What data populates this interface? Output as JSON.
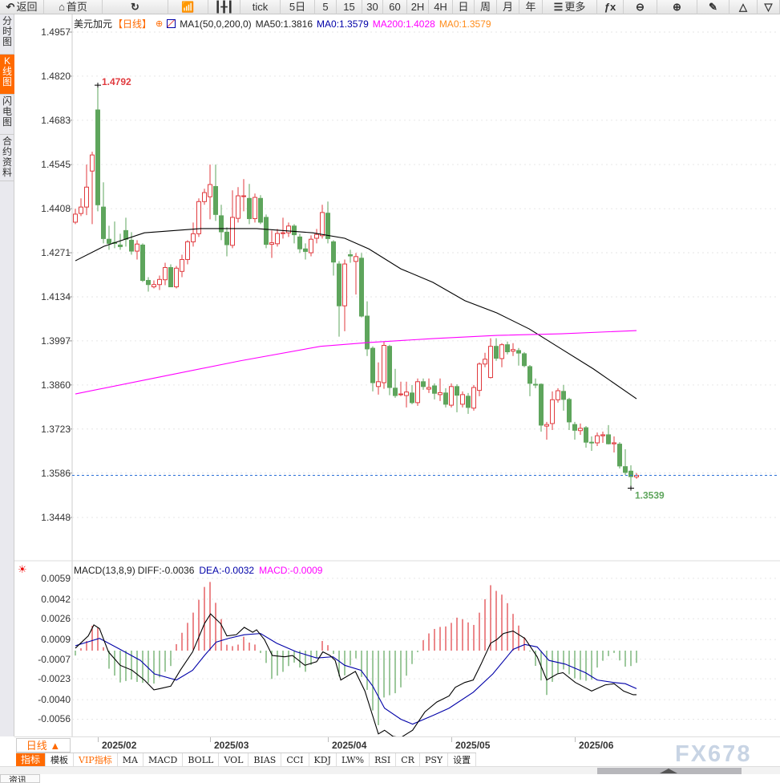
{
  "toolbar": {
    "items": [
      {
        "label": "返回",
        "icon": "back-arrow-icon",
        "w": 55
      },
      {
        "label": "首页",
        "icon": "home-icon",
        "w": 73
      },
      {
        "label": "",
        "icon": "refresh-icon",
        "w": 82
      },
      {
        "label": "",
        "icon": "indicator-chart-icon",
        "w": 50
      },
      {
        "label": "",
        "icon": "candlestick-icon",
        "w": 40
      },
      {
        "label": "tick",
        "icon": "",
        "w": 50
      },
      {
        "label": "5日",
        "icon": "",
        "w": 43
      },
      {
        "label": "5",
        "icon": "",
        "w": 27
      },
      {
        "label": "15",
        "icon": "",
        "w": 32
      },
      {
        "label": "30",
        "icon": "",
        "w": 26
      },
      {
        "label": "60",
        "icon": "",
        "w": 30
      },
      {
        "label": "2H",
        "icon": "",
        "w": 27
      },
      {
        "label": "4H",
        "icon": "",
        "w": 30
      },
      {
        "label": "日",
        "icon": "",
        "w": 27
      },
      {
        "label": "周",
        "icon": "",
        "w": 28
      },
      {
        "label": "月",
        "icon": "",
        "w": 28
      },
      {
        "label": "年",
        "icon": "",
        "w": 29
      },
      {
        "label": "更多",
        "icon": "menu-icon",
        "w": 68
      },
      {
        "label": "",
        "icon": "fx-icon",
        "w": 33
      },
      {
        "label": "",
        "icon": "zoom-out-icon",
        "w": 42
      },
      {
        "label": "",
        "icon": "zoom-in-icon",
        "w": 50
      },
      {
        "label": "",
        "icon": "pen-icon",
        "w": 40
      },
      {
        "label": "",
        "icon": "triangle-up-icon",
        "w": 35
      },
      {
        "label": "",
        "icon": "triangle-down-icon",
        "w": 28
      }
    ]
  },
  "sidebar": {
    "tabs": [
      {
        "label": "分时图",
        "active": false
      },
      {
        "label": "K线图",
        "active": true
      },
      {
        "label": "闪电图",
        "active": false
      },
      {
        "label": "合约资料",
        "active": false
      }
    ]
  },
  "header": {
    "symbol": "美元加元",
    "period": "【日线】",
    "ma_params": "MA1(50,0,200,0)",
    "ma50": "MA50:1.3816",
    "ma0": "MA0:1.3579",
    "ma200": "MA200:1.4028",
    "ma0b": "MA0:1.3579"
  },
  "macd_header": {
    "name": "MACD(13,8,9)",
    "diff": "DIFF:-0.0036",
    "dea": "DEA:-0.0032",
    "macd": "MACD:-0.0009"
  },
  "colors": {
    "up": "#e03a3e",
    "down": "#5ea55c",
    "ma50": "#000000",
    "ma200": "#ff00ff",
    "diff": "#000000",
    "dea": "#0000a8",
    "accent": "#ff6a00",
    "last_price_line": "#2a6fd6"
  },
  "x_axis": {
    "period_button": "日线 ▲",
    "ticks": [
      {
        "label": "2025/02",
        "candle_index": 4
      },
      {
        "label": "2025/03",
        "candle_index": 24
      },
      {
        "label": "2025/04",
        "candle_index": 45
      },
      {
        "label": "2025/05",
        "candle_index": 67
      },
      {
        "label": "2025/06",
        "candle_index": 89
      }
    ]
  },
  "indicator_tabs": [
    {
      "label": "指标",
      "style": "active"
    },
    {
      "label": "模板",
      "style": ""
    },
    {
      "label": "VIP指标",
      "style": "vip"
    },
    {
      "label": "MA",
      "style": ""
    },
    {
      "label": "MACD",
      "style": ""
    },
    {
      "label": "BOLL",
      "style": ""
    },
    {
      "label": "VOL",
      "style": ""
    },
    {
      "label": "BIAS",
      "style": ""
    },
    {
      "label": "CCI",
      "style": ""
    },
    {
      "label": "KDJ",
      "style": ""
    },
    {
      "label": "LW%",
      "style": ""
    },
    {
      "label": "RSI",
      "style": ""
    },
    {
      "label": "CR",
      "style": ""
    },
    {
      "label": "PSY",
      "style": ""
    },
    {
      "label": "设置",
      "style": ""
    }
  ],
  "watermark": "FX678",
  "bottom_tab": "资讯",
  "chart_data": {
    "type": "candlestick",
    "price_ticks": [
      "1.4957",
      "1.4820",
      "1.4683",
      "1.4545",
      "1.4408",
      "1.4271",
      "1.4134",
      "1.3997",
      "1.3860",
      "1.3723",
      "1.3586",
      "1.3448"
    ],
    "ylim": [
      1.3448,
      1.4957
    ],
    "high_label": "1.4792",
    "low_label": "1.3539",
    "last_price": 1.3579,
    "high_index": 4,
    "low_index": 99,
    "ohlc": [
      [
        1.4366,
        1.4408,
        1.436,
        1.4391
      ],
      [
        1.4393,
        1.444,
        1.4385,
        1.4413
      ],
      [
        1.4413,
        1.4545,
        1.4388,
        1.4475
      ],
      [
        1.4525,
        1.4585,
        1.436,
        1.4575
      ],
      [
        1.4715,
        1.4792,
        1.44,
        1.442
      ],
      [
        1.4413,
        1.449,
        1.43,
        1.4315
      ],
      [
        1.4313,
        1.4355,
        1.428,
        1.43
      ],
      [
        1.4303,
        1.4368,
        1.4285,
        1.43
      ],
      [
        1.4295,
        1.433,
        1.428,
        1.429
      ],
      [
        1.434,
        1.438,
        1.429,
        1.4313
      ],
      [
        1.431,
        1.4335,
        1.4265,
        1.4276
      ],
      [
        1.4276,
        1.431,
        1.425,
        1.4298
      ],
      [
        1.4295,
        1.43,
        1.418,
        1.4185
      ],
      [
        1.4185,
        1.4195,
        1.415,
        1.4172
      ],
      [
        1.4165,
        1.4185,
        1.416,
        1.4172
      ],
      [
        1.4172,
        1.42,
        1.4155,
        1.4188
      ],
      [
        1.4187,
        1.424,
        1.417,
        1.4225
      ],
      [
        1.4225,
        1.4235,
        1.4165,
        1.4165
      ],
      [
        1.4165,
        1.423,
        1.416,
        1.4223
      ],
      [
        1.4213,
        1.4265,
        1.4195,
        1.425
      ],
      [
        1.425,
        1.431,
        1.4235,
        1.4305
      ],
      [
        1.4305,
        1.4365,
        1.429,
        1.433
      ],
      [
        1.433,
        1.444,
        1.432,
        1.443
      ],
      [
        1.443,
        1.447,
        1.442,
        1.4458
      ],
      [
        1.4445,
        1.4545,
        1.4375,
        1.4483
      ],
      [
        1.4477,
        1.4545,
        1.437,
        1.439
      ],
      [
        1.4386,
        1.442,
        1.431,
        1.4336
      ],
      [
        1.4335,
        1.435,
        1.426,
        1.4296
      ],
      [
        1.4294,
        1.4465,
        1.4285,
        1.4381
      ],
      [
        1.4378,
        1.4475,
        1.4365,
        1.4448
      ],
      [
        1.4448,
        1.45,
        1.44,
        1.4448
      ],
      [
        1.444,
        1.4485,
        1.436,
        1.4377
      ],
      [
        1.4377,
        1.4455,
        1.4365,
        1.4443
      ],
      [
        1.444,
        1.445,
        1.436,
        1.4366
      ],
      [
        1.4381,
        1.439,
        1.4285,
        1.4297
      ],
      [
        1.4297,
        1.434,
        1.4255,
        1.4302
      ],
      [
        1.4299,
        1.4345,
        1.429,
        1.4331
      ],
      [
        1.4331,
        1.438,
        1.4315,
        1.4333
      ],
      [
        1.4333,
        1.4365,
        1.432,
        1.4354
      ],
      [
        1.4354,
        1.436,
        1.43,
        1.4327
      ],
      [
        1.432,
        1.433,
        1.427,
        1.4283
      ],
      [
        1.4283,
        1.43,
        1.425,
        1.4275
      ],
      [
        1.4271,
        1.4325,
        1.426,
        1.4313
      ],
      [
        1.4316,
        1.4345,
        1.43,
        1.4328
      ],
      [
        1.4324,
        1.442,
        1.4315,
        1.4396
      ],
      [
        1.4394,
        1.443,
        1.43,
        1.4315
      ],
      [
        1.4305,
        1.431,
        1.42,
        1.4242
      ],
      [
        1.4236,
        1.4245,
        1.401,
        1.4106
      ],
      [
        1.4106,
        1.425,
        1.4027,
        1.4236
      ],
      [
        1.4265,
        1.428,
        1.424,
        1.4261
      ],
      [
        1.4244,
        1.427,
        1.4141,
        1.4259
      ],
      [
        1.4254,
        1.427,
        1.407,
        1.4074
      ],
      [
        1.4074,
        1.412,
        1.395,
        1.3972
      ],
      [
        1.3974,
        1.398,
        1.384,
        1.3867
      ],
      [
        1.3855,
        1.393,
        1.383,
        1.387
      ],
      [
        1.3867,
        1.3995,
        1.3848,
        1.3983
      ],
      [
        1.398,
        1.3985,
        1.3828,
        1.3852
      ],
      [
        1.385,
        1.391,
        1.382,
        1.3827
      ],
      [
        1.383,
        1.387,
        1.3825,
        1.3832
      ],
      [
        1.3827,
        1.387,
        1.379,
        1.3838
      ],
      [
        1.3835,
        1.386,
        1.38,
        1.3805
      ],
      [
        1.3805,
        1.388,
        1.3795,
        1.387
      ],
      [
        1.387,
        1.388,
        1.3845,
        1.3855
      ],
      [
        1.3847,
        1.388,
        1.3835,
        1.3852
      ],
      [
        1.3857,
        1.3865,
        1.3815,
        1.3834
      ],
      [
        1.383,
        1.388,
        1.381,
        1.3836
      ],
      [
        1.3835,
        1.385,
        1.379,
        1.38
      ],
      [
        1.3797,
        1.3865,
        1.379,
        1.3855
      ],
      [
        1.3855,
        1.3862,
        1.3775,
        1.3828
      ],
      [
        1.38,
        1.384,
        1.379,
        1.383
      ],
      [
        1.3825,
        1.3835,
        1.377,
        1.379
      ],
      [
        1.3788,
        1.386,
        1.378,
        1.3852
      ],
      [
        1.3843,
        1.393,
        1.3825,
        1.3925
      ],
      [
        1.3925,
        1.396,
        1.3915,
        1.394
      ],
      [
        1.3883,
        1.4005,
        1.388,
        1.398
      ],
      [
        1.398,
        1.4005,
        1.3935,
        1.3943
      ],
      [
        1.3942,
        1.399,
        1.3915,
        1.3985
      ],
      [
        1.3985,
        1.3995,
        1.3955,
        1.3963
      ],
      [
        1.3965,
        1.399,
        1.395,
        1.397
      ],
      [
        1.3967,
        1.3975,
        1.392,
        1.3959
      ],
      [
        1.3957,
        1.3962,
        1.3915,
        1.392
      ],
      [
        1.3917,
        1.3922,
        1.3825,
        1.3865
      ],
      [
        1.3862,
        1.388,
        1.385,
        1.386
      ],
      [
        1.3862,
        1.3865,
        1.3715,
        1.3735
      ],
      [
        1.3732,
        1.3745,
        1.369,
        1.3737
      ],
      [
        1.374,
        1.384,
        1.372,
        1.3814
      ],
      [
        1.3814,
        1.385,
        1.3805,
        1.3842
      ],
      [
        1.384,
        1.386,
        1.378,
        1.3815
      ],
      [
        1.3815,
        1.382,
        1.372,
        1.3745
      ],
      [
        1.3737,
        1.3745,
        1.369,
        1.3719
      ],
      [
        1.3718,
        1.374,
        1.3705,
        1.3725
      ],
      [
        1.3727,
        1.3732,
        1.3665,
        1.3682
      ],
      [
        1.3682,
        1.37,
        1.3655,
        1.368
      ],
      [
        1.368,
        1.3712,
        1.367,
        1.3702
      ],
      [
        1.3702,
        1.3715,
        1.368,
        1.3705
      ],
      [
        1.3705,
        1.3735,
        1.3675,
        1.3677
      ],
      [
        1.3677,
        1.37,
        1.365,
        1.368
      ],
      [
        1.3676,
        1.3682,
        1.36,
        1.3608
      ],
      [
        1.3606,
        1.366,
        1.358,
        1.3588
      ],
      [
        1.3592,
        1.361,
        1.3539,
        1.3575
      ],
      [
        1.3574,
        1.3586,
        1.3568,
        1.3579
      ]
    ],
    "ma50": [
      [
        0,
        1.4246
      ],
      [
        5.1,
        1.4291
      ],
      [
        12.3,
        1.4333
      ],
      [
        22.3,
        1.4346
      ],
      [
        32.3,
        1.4346
      ],
      [
        42.3,
        1.4333
      ],
      [
        48,
        1.4316
      ],
      [
        52.3,
        1.4283
      ],
      [
        58,
        1.4221
      ],
      [
        63.7,
        1.4179
      ],
      [
        69.4,
        1.4122
      ],
      [
        75.1,
        1.4084
      ],
      [
        80.9,
        1.4034
      ],
      [
        86.6,
        1.3972
      ],
      [
        92.3,
        1.391
      ],
      [
        100,
        1.3817
      ]
    ],
    "ma200": [
      [
        0,
        1.3832
      ],
      [
        15.1,
        1.3885
      ],
      [
        29.4,
        1.3935
      ],
      [
        43.7,
        1.398
      ],
      [
        52.3,
        1.3992
      ],
      [
        63.7,
        1.4004
      ],
      [
        75.1,
        1.4014
      ],
      [
        86.6,
        1.4019
      ],
      [
        100,
        1.4029
      ]
    ],
    "macd": {
      "ticks": [
        "0.0059",
        "0.0042",
        "0.0026",
        "0.0009",
        "-0.0007",
        "-0.0023",
        "-0.0040",
        "-0.0056"
      ],
      "ylim": [
        -0.0072,
        0.0062
      ],
      "diff": [
        [
          0,
          0.0002
        ],
        [
          2.3,
          0.0012
        ],
        [
          3.3,
          0.0021
        ],
        [
          4.3,
          0.0018
        ],
        [
          5.9,
          -0.0001
        ],
        [
          8,
          -0.0012
        ],
        [
          10.1,
          -0.0016
        ],
        [
          12.3,
          -0.0024
        ],
        [
          14,
          -0.0032
        ],
        [
          15.1,
          -0.0031
        ],
        [
          17,
          -0.0029
        ],
        [
          18.7,
          -0.0016
        ],
        [
          20.9,
          -0.0001
        ],
        [
          23,
          0.0022
        ],
        [
          24.1,
          0.003
        ],
        [
          25.9,
          0.0022
        ],
        [
          27,
          0.0012
        ],
        [
          28.7,
          0.0013
        ],
        [
          30.1,
          0.0019
        ],
        [
          31.6,
          0.0015
        ],
        [
          32.3,
          0.0017
        ],
        [
          33.7,
          0.0009
        ],
        [
          35.1,
          -0.0004
        ],
        [
          37.3,
          -0.0005
        ],
        [
          38.7,
          -0.0004
        ],
        [
          40.9,
          -0.0012
        ],
        [
          43,
          -0.0009
        ],
        [
          44.1,
          -0.0001
        ],
        [
          45.4,
          -0.0004
        ],
        [
          46.3,
          -0.0008
        ],
        [
          47.3,
          -0.0024
        ],
        [
          49.9,
          -0.0017
        ],
        [
          51.6,
          -0.0033
        ],
        [
          54,
          -0.0068
        ],
        [
          55.1,
          -0.0065
        ],
        [
          56.6,
          -0.007
        ],
        [
          58,
          -0.0071
        ],
        [
          60.1,
          -0.0065
        ],
        [
          62.3,
          -0.005
        ],
        [
          64.4,
          -0.0042
        ],
        [
          66.6,
          -0.0037
        ],
        [
          67.7,
          -0.003
        ],
        [
          69.4,
          -0.0026
        ],
        [
          70.9,
          -0.0024
        ],
        [
          72.3,
          -0.0011
        ],
        [
          74,
          0.0006
        ],
        [
          75.1,
          0.0009
        ],
        [
          76.3,
          0.0014
        ],
        [
          78,
          0.0016
        ],
        [
          80.1,
          0.001
        ],
        [
          82.3,
          -0.0005
        ],
        [
          84,
          -0.0024
        ],
        [
          85.9,
          -0.0019
        ],
        [
          86.9,
          -0.0018
        ],
        [
          89.1,
          -0.0026
        ],
        [
          92,
          -0.0033
        ],
        [
          94.4,
          -0.0028
        ],
        [
          96,
          -0.0027
        ],
        [
          97.7,
          -0.0033
        ],
        [
          99.4,
          -0.0036
        ],
        [
          100,
          -0.0036
        ]
      ],
      "dea": [
        [
          0,
          0.0004
        ],
        [
          4.3,
          0.001
        ],
        [
          8,
          0.0001
        ],
        [
          11.6,
          -0.0008
        ],
        [
          14.1,
          -0.0019
        ],
        [
          18,
          -0.0024
        ],
        [
          20.9,
          -0.0016
        ],
        [
          23,
          -0.0004
        ],
        [
          25.1,
          0.0007
        ],
        [
          27.3,
          0.001
        ],
        [
          30.1,
          0.0013
        ],
        [
          33,
          0.0014
        ],
        [
          35.9,
          0.0006
        ],
        [
          39.4,
          -0.0001
        ],
        [
          43,
          -0.0006
        ],
        [
          45.9,
          -0.0005
        ],
        [
          48,
          -0.0012
        ],
        [
          50.9,
          -0.0016
        ],
        [
          53,
          -0.0029
        ],
        [
          55.1,
          -0.0047
        ],
        [
          58,
          -0.0056
        ],
        [
          60.1,
          -0.006
        ],
        [
          63.7,
          -0.0053
        ],
        [
          66.6,
          -0.0047
        ],
        [
          70.9,
          -0.0034
        ],
        [
          74.4,
          -0.0019
        ],
        [
          78,
          0.0001
        ],
        [
          80.1,
          0.0005
        ],
        [
          82.3,
          0.0003
        ],
        [
          84.4,
          -0.0008
        ],
        [
          87.3,
          -0.0011
        ],
        [
          90.9,
          -0.0018
        ],
        [
          93,
          -0.0024
        ],
        [
          95.9,
          -0.0026
        ],
        [
          98,
          -0.0027
        ],
        [
          100,
          -0.0031
        ]
      ]
    }
  }
}
